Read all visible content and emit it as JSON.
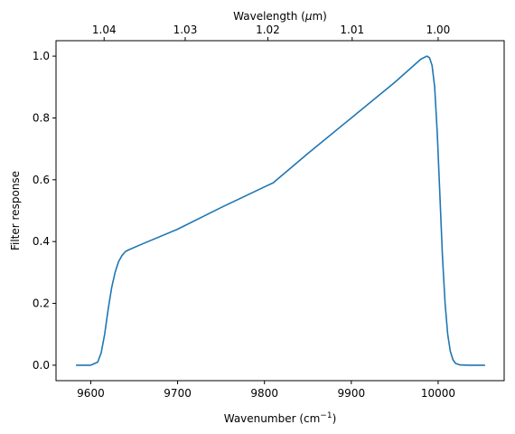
{
  "chart_data": {
    "type": "line",
    "xlabel": "Wavenumber (cm",
    "xlabel_sup": "−1",
    "xlabel_end": ")",
    "ylabel": "Filter response",
    "top_xlabel": "Wavelength (",
    "top_xlabel_mu": "μ",
    "top_xlabel_end": "m)",
    "xlim": [
      9560,
      10076
    ],
    "ylim": [
      -0.05,
      1.05
    ],
    "x_ticks": [
      9600,
      9700,
      9800,
      9900,
      10000
    ],
    "x_tick_labels": [
      "9600",
      "9700",
      "9800",
      "9900",
      "10000"
    ],
    "y_ticks": [
      0.0,
      0.2,
      0.4,
      0.6,
      0.8,
      1.0
    ],
    "y_tick_labels": [
      "0.0",
      "0.2",
      "0.4",
      "0.6",
      "0.8",
      "1.0"
    ],
    "top_ticks": [
      1.04,
      1.03,
      1.02,
      1.01,
      1.0
    ],
    "top_tick_labels": [
      "1.04",
      "1.03",
      "1.02",
      "1.01",
      "1.00"
    ],
    "grid": false,
    "line_color": "#1f77b4",
    "series": [
      {
        "x": [
          9583,
          9600,
          9608,
          9612,
          9616,
          9620,
          9624,
          9628,
          9632,
          9636,
          9640,
          9645,
          9660,
          9700,
          9750,
          9800,
          9810,
          9850,
          9900,
          9950,
          9980,
          9987,
          9990,
          9993,
          9996,
          9999,
          10002,
          10005,
          10008,
          10011,
          10014,
          10017,
          10020,
          10025,
          10035,
          10054
        ],
        "y": [
          0.0,
          0.0,
          0.01,
          0.04,
          0.1,
          0.18,
          0.25,
          0.3,
          0.335,
          0.355,
          0.368,
          0.375,
          0.393,
          0.44,
          0.51,
          0.577,
          0.59,
          0.685,
          0.8,
          0.915,
          0.99,
          1.0,
          0.995,
          0.97,
          0.9,
          0.75,
          0.55,
          0.35,
          0.2,
          0.1,
          0.045,
          0.018,
          0.006,
          0.001,
          0.0,
          0.0
        ]
      }
    ]
  }
}
